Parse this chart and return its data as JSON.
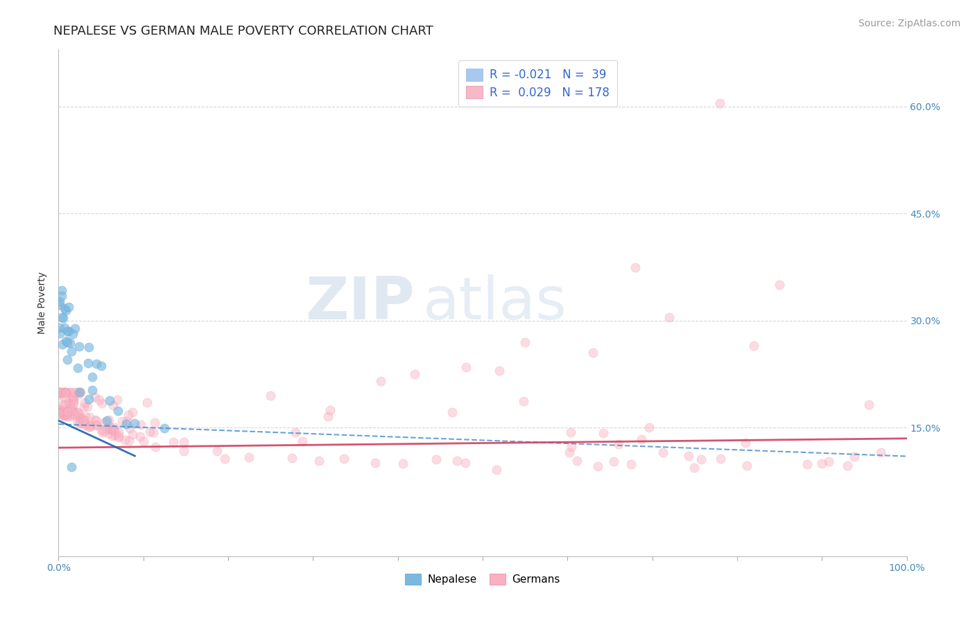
{
  "title": "NEPALESE VS GERMAN MALE POVERTY CORRELATION CHART",
  "source_text": "Source: ZipAtlas.com",
  "ylabel": "Male Poverty",
  "watermark_zip": "ZIP",
  "watermark_atlas": "atlas",
  "xlim": [
    0,
    100
  ],
  "ylim": [
    -3,
    68
  ],
  "ytick_positions": [
    15,
    30,
    45,
    60
  ],
  "ytick_labels": [
    "15.0%",
    "30.0%",
    "45.0%",
    "60.0%"
  ],
  "xtick_positions": [
    0,
    10,
    20,
    30,
    40,
    50,
    60,
    70,
    80,
    90,
    100
  ],
  "xtick_labels": [
    "0.0%",
    "",
    "",
    "",
    "",
    "",
    "",
    "",
    "",
    "",
    "100.0%"
  ],
  "legend_line1": "R = -0.021   N =  39",
  "legend_line2": "R =  0.029   N = 178",
  "legend_color1": "#a8c8f0",
  "legend_color2": "#f9b8c8",
  "nepalese_color": "#7ab8e0",
  "nepalese_edge": "#5598c8",
  "nepalese_alpha": 0.65,
  "nepalese_size": 90,
  "germans_color": "#f9b0c0",
  "germans_edge": "#e88098",
  "germans_alpha": 0.45,
  "germans_size": 90,
  "trend_blue_solid_color": "#2060b0",
  "trend_blue_dashed_color": "#5090d0",
  "trend_pink_color": "#d04060",
  "background_color": "#ffffff",
  "title_fontsize": 13,
  "axis_label_fontsize": 10,
  "tick_fontsize": 10,
  "legend_fontsize": 12,
  "source_fontsize": 10,
  "bottom_legend_label1": "Nepalese",
  "bottom_legend_label2": "Germans",
  "grid_color": "#cccccc"
}
